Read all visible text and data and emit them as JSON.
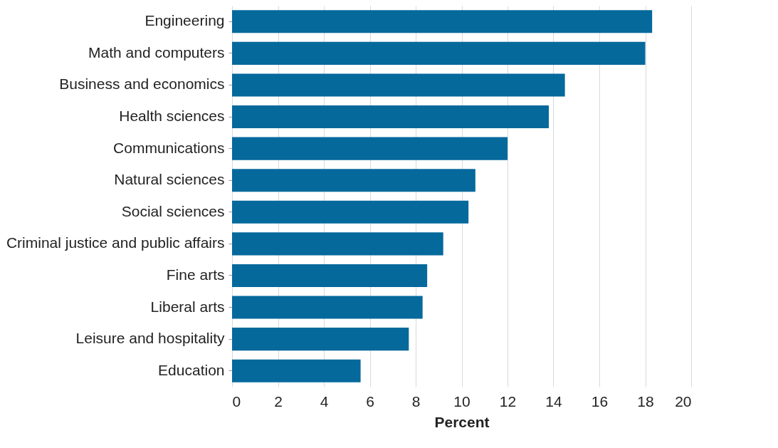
{
  "chart_data": {
    "type": "bar",
    "orientation": "horizontal",
    "xlabel": "Percent",
    "categories": [
      "Engineering",
      "Math and computers",
      "Business and economics",
      "Health sciences",
      "Communications",
      "Natural sciences",
      "Social sciences",
      "Criminal justice and public affairs",
      "Fine arts",
      "Liberal arts",
      "Leisure and hospitality",
      "Education"
    ],
    "values": [
      18.3,
      18.0,
      14.5,
      13.8,
      12.0,
      10.6,
      10.3,
      9.2,
      8.5,
      8.3,
      7.7,
      5.6
    ],
    "color": "#05699c",
    "xlim": [
      0,
      20
    ],
    "xticks": [
      0,
      2,
      4,
      6,
      8,
      10,
      12,
      14,
      16,
      18,
      20
    ],
    "grid": "x"
  }
}
